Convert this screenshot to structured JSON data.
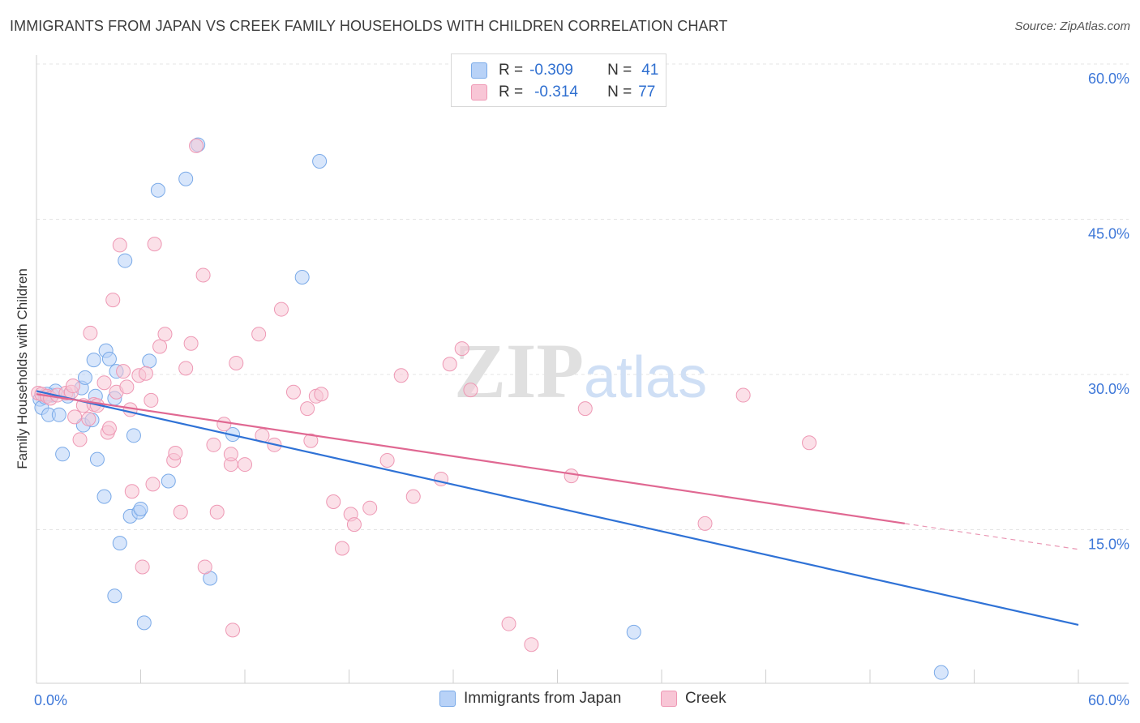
{
  "title": "IMMIGRANTS FROM JAPAN VS CREEK FAMILY HOUSEHOLDS WITH CHILDREN CORRELATION CHART",
  "source": "Source: ZipAtlas.com",
  "watermark": {
    "zip": "ZIP",
    "atlas": "atlas"
  },
  "legend_top": [
    {
      "r_label": "R =",
      "r_value": "-0.309",
      "n_label": "N =",
      "n_value": "41"
    },
    {
      "r_label": "R =",
      "r_value": "-0.314",
      "n_label": "N =",
      "n_value": "77"
    }
  ],
  "legend_bottom": [
    "Immigrants from Japan",
    "Creek"
  ],
  "colors": {
    "japan_fill": "#b8d2f7",
    "japan_stroke": "#7aaae8",
    "japan_line": "#2f72d6",
    "creek_fill": "#f8c6d6",
    "creek_stroke": "#ee98b4",
    "creek_line": "#e06892",
    "tick_text": "#3d77d8",
    "grid": "#e4e4e4"
  },
  "chart_data": {
    "type": "scatter",
    "title": "IMMIGRANTS FROM JAPAN VS CREEK FAMILY HOUSEHOLDS WITH CHILDREN CORRELATION CHART",
    "xlabel": "",
    "ylabel": "Family Households with Children",
    "xlim": [
      0,
      60
    ],
    "ylim": [
      0,
      61
    ],
    "x_tick_labels": [
      {
        "value": 0,
        "label": "0.0%"
      },
      {
        "value": 60,
        "label": "60.0%"
      }
    ],
    "y_ticks": [
      {
        "value": 15,
        "label": "15.0%"
      },
      {
        "value": 30,
        "label": "30.0%"
      },
      {
        "value": 45,
        "label": "45.0%"
      },
      {
        "value": 60,
        "label": "60.0%"
      }
    ],
    "series": [
      {
        "name": "Immigrants from Japan",
        "points": [
          [
            0.2,
            27.6
          ],
          [
            0.3,
            26.8
          ],
          [
            0.5,
            27.8
          ],
          [
            0.7,
            26.1
          ],
          [
            0.9,
            28.0
          ],
          [
            1.1,
            28.4
          ],
          [
            1.3,
            26.1
          ],
          [
            1.5,
            22.3
          ],
          [
            2.6,
            28.7
          ],
          [
            2.7,
            25.1
          ],
          [
            3.3,
            31.4
          ],
          [
            2.8,
            29.7
          ],
          [
            3.4,
            27.9
          ],
          [
            3.2,
            25.6
          ],
          [
            3.5,
            21.8
          ],
          [
            3.9,
            18.2
          ],
          [
            4.0,
            32.3
          ],
          [
            4.2,
            31.5
          ],
          [
            4.5,
            27.7
          ],
          [
            4.6,
            30.3
          ],
          [
            4.8,
            13.7
          ],
          [
            5.1,
            41.0
          ],
          [
            5.4,
            16.3
          ],
          [
            5.6,
            24.1
          ],
          [
            5.9,
            16.7
          ],
          [
            6.0,
            17.0
          ],
          [
            6.2,
            6.0
          ],
          [
            6.5,
            31.3
          ],
          [
            7.0,
            47.8
          ],
          [
            7.6,
            19.7
          ],
          [
            8.6,
            48.9
          ],
          [
            9.3,
            52.2
          ],
          [
            10.0,
            10.3
          ],
          [
            4.5,
            8.6
          ],
          [
            11.3,
            24.2
          ],
          [
            15.3,
            39.4
          ],
          [
            16.3,
            50.6
          ],
          [
            34.4,
            5.1
          ],
          [
            52.1,
            1.2
          ],
          [
            0.6,
            28.1
          ],
          [
            1.8,
            27.9
          ]
        ],
        "trend": {
          "x1": 0,
          "y1": 28.4,
          "x2": 60,
          "y2": 5.8
        }
      },
      {
        "name": "Creek",
        "points": [
          [
            0.1,
            28.2
          ],
          [
            0.3,
            28.1
          ],
          [
            0.6,
            27.9
          ],
          [
            0.8,
            27.7
          ],
          [
            1.2,
            28.0
          ],
          [
            1.7,
            28.2
          ],
          [
            2.0,
            28.3
          ],
          [
            2.2,
            25.9
          ],
          [
            2.1,
            28.9
          ],
          [
            2.5,
            23.7
          ],
          [
            2.7,
            27.0
          ],
          [
            3.0,
            25.7
          ],
          [
            3.1,
            34.0
          ],
          [
            3.3,
            27.1
          ],
          [
            3.5,
            27.0
          ],
          [
            3.9,
            29.2
          ],
          [
            4.1,
            24.4
          ],
          [
            4.2,
            24.8
          ],
          [
            4.4,
            37.2
          ],
          [
            4.6,
            28.3
          ],
          [
            5.0,
            30.3
          ],
          [
            5.2,
            28.8
          ],
          [
            5.4,
            26.6
          ],
          [
            5.5,
            18.7
          ],
          [
            5.9,
            29.9
          ],
          [
            6.1,
            11.4
          ],
          [
            6.3,
            30.1
          ],
          [
            6.6,
            27.5
          ],
          [
            6.7,
            19.4
          ],
          [
            7.1,
            32.7
          ],
          [
            7.4,
            33.9
          ],
          [
            7.9,
            21.7
          ],
          [
            8.0,
            22.4
          ],
          [
            8.3,
            16.7
          ],
          [
            8.6,
            30.6
          ],
          [
            8.9,
            33.0
          ],
          [
            9.2,
            52.1
          ],
          [
            9.6,
            39.6
          ],
          [
            9.7,
            11.4
          ],
          [
            10.2,
            23.2
          ],
          [
            10.4,
            16.7
          ],
          [
            10.8,
            25.2
          ],
          [
            11.2,
            21.3
          ],
          [
            11.3,
            5.3
          ],
          [
            11.5,
            31.1
          ],
          [
            12.0,
            21.3
          ],
          [
            12.8,
            33.9
          ],
          [
            13.0,
            24.1
          ],
          [
            13.7,
            23.2
          ],
          [
            14.1,
            36.3
          ],
          [
            14.8,
            28.3
          ],
          [
            15.6,
            26.7
          ],
          [
            15.8,
            23.6
          ],
          [
            16.1,
            27.9
          ],
          [
            17.1,
            17.7
          ],
          [
            18.1,
            16.5
          ],
          [
            18.3,
            15.5
          ],
          [
            17.6,
            13.2
          ],
          [
            19.2,
            17.1
          ],
          [
            20.2,
            21.7
          ],
          [
            21.0,
            29.9
          ],
          [
            21.7,
            18.2
          ],
          [
            23.3,
            19.9
          ],
          [
            23.8,
            31.0
          ],
          [
            24.5,
            32.5
          ],
          [
            25.0,
            28.5
          ],
          [
            27.2,
            5.9
          ],
          [
            28.5,
            3.9
          ],
          [
            30.8,
            20.2
          ],
          [
            31.6,
            26.7
          ],
          [
            38.5,
            15.6
          ],
          [
            40.7,
            28.0
          ],
          [
            44.5,
            23.4
          ],
          [
            6.8,
            42.6
          ],
          [
            4.8,
            42.5
          ],
          [
            11.2,
            22.3
          ],
          [
            16.4,
            28.1
          ]
        ],
        "trend": {
          "x1": 0,
          "y1": 28.1,
          "x2": 50,
          "y2": 15.6
        },
        "trend_dashed": {
          "x1": 50,
          "y1": 15.6,
          "x2": 60,
          "y2": 13.1
        }
      }
    ]
  }
}
